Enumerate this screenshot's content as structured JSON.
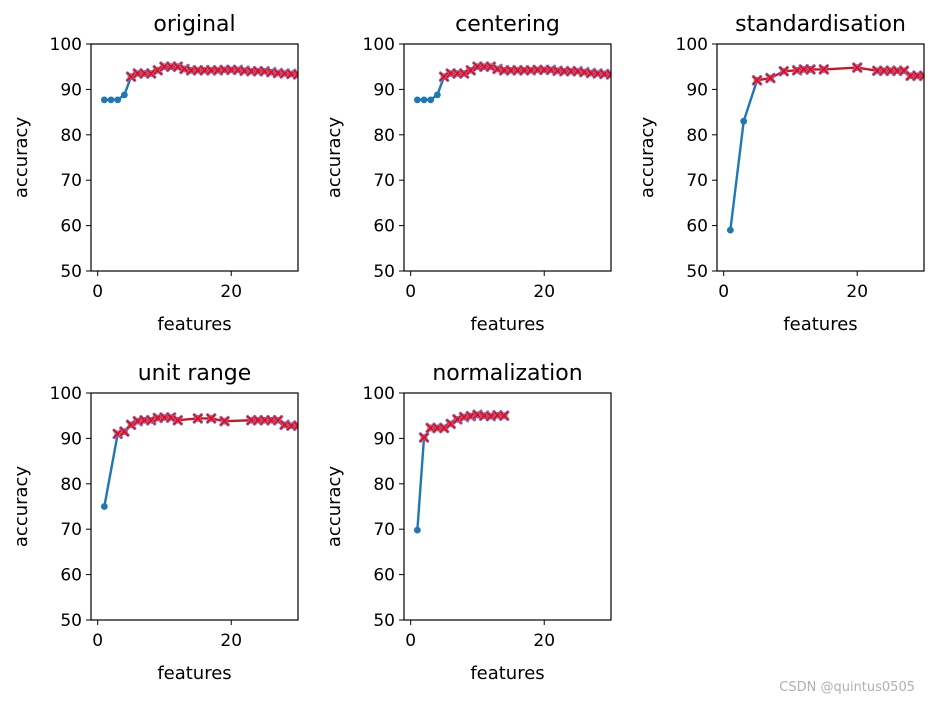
{
  "watermark": "CSDN @quintus0505",
  "colors": {
    "line": "#1f77b4",
    "selected_line": "#ff0000",
    "selected_marker": "#ff0000",
    "marker_edge": "#7f7fd0",
    "axis": "#000000",
    "text": "#000000",
    "watermark": "#b0b0b0"
  },
  "chart_data": [
    {
      "type": "line",
      "title": "original",
      "xlabel": "features",
      "ylabel": "accuracy",
      "xlim": [
        -1,
        30
      ],
      "ylim": [
        50,
        100
      ],
      "xticks": [
        0,
        20
      ],
      "yticks": [
        50,
        60,
        70,
        80,
        90,
        100
      ],
      "grid": false,
      "series": [
        {
          "role": "all",
          "x": [
            1,
            2,
            3,
            4,
            5,
            6,
            7,
            8,
            9,
            10,
            11,
            12,
            13,
            14,
            15,
            16,
            17,
            18,
            19,
            20,
            21,
            22,
            23,
            24,
            25,
            26,
            27,
            28,
            29,
            30
          ],
          "y": [
            87.7,
            87.7,
            87.7,
            88.8,
            92.8,
            93.5,
            93.5,
            93.5,
            94.2,
            95.0,
            95.0,
            95.0,
            94.5,
            94.2,
            94.2,
            94.2,
            94.2,
            94.2,
            94.3,
            94.3,
            94.3,
            94.1,
            94.0,
            94.0,
            94.0,
            93.8,
            93.6,
            93.5,
            93.4,
            93.3
          ]
        },
        {
          "role": "selected",
          "x": [
            5,
            6,
            7,
            8,
            9,
            10,
            11,
            12,
            13,
            14,
            15,
            16,
            17,
            18,
            19,
            20,
            21,
            22,
            23,
            24,
            25,
            26,
            27,
            28,
            29,
            30
          ],
          "y": [
            92.8,
            93.5,
            93.5,
            93.5,
            94.2,
            95.0,
            95.0,
            95.0,
            94.5,
            94.2,
            94.2,
            94.2,
            94.2,
            94.2,
            94.3,
            94.3,
            94.3,
            94.1,
            94.0,
            94.0,
            94.0,
            93.8,
            93.6,
            93.5,
            93.4,
            93.3
          ]
        }
      ]
    },
    {
      "type": "line",
      "title": "centering",
      "xlabel": "features",
      "ylabel": "accuracy",
      "xlim": [
        -1,
        30
      ],
      "ylim": [
        50,
        100
      ],
      "xticks": [
        0,
        20
      ],
      "yticks": [
        50,
        60,
        70,
        80,
        90,
        100
      ],
      "grid": false,
      "series": [
        {
          "role": "all",
          "x": [
            1,
            2,
            3,
            4,
            5,
            6,
            7,
            8,
            9,
            10,
            11,
            12,
            13,
            14,
            15,
            16,
            17,
            18,
            19,
            20,
            21,
            22,
            23,
            24,
            25,
            26,
            27,
            28,
            29,
            30
          ],
          "y": [
            87.7,
            87.7,
            87.7,
            88.8,
            92.8,
            93.5,
            93.5,
            93.5,
            94.2,
            95.0,
            95.0,
            95.0,
            94.5,
            94.2,
            94.2,
            94.2,
            94.2,
            94.2,
            94.3,
            94.3,
            94.3,
            94.1,
            94.0,
            94.0,
            94.0,
            93.8,
            93.6,
            93.5,
            93.4,
            93.3
          ]
        },
        {
          "role": "selected",
          "x": [
            5,
            6,
            7,
            8,
            9,
            10,
            11,
            12,
            13,
            14,
            15,
            16,
            17,
            18,
            19,
            20,
            21,
            22,
            23,
            24,
            25,
            26,
            27,
            28,
            29,
            30
          ],
          "y": [
            92.8,
            93.5,
            93.5,
            93.5,
            94.2,
            95.0,
            95.0,
            95.0,
            94.5,
            94.2,
            94.2,
            94.2,
            94.2,
            94.2,
            94.3,
            94.3,
            94.3,
            94.1,
            94.0,
            94.0,
            94.0,
            93.8,
            93.6,
            93.5,
            93.4,
            93.3
          ]
        }
      ]
    },
    {
      "type": "line",
      "title": "standardisation",
      "xlabel": "features",
      "ylabel": "accuracy",
      "xlim": [
        -1,
        30
      ],
      "ylim": [
        50,
        100
      ],
      "xticks": [
        0,
        20
      ],
      "yticks": [
        50,
        60,
        70,
        80,
        90,
        100
      ],
      "grid": false,
      "series": [
        {
          "role": "all",
          "x": [
            1,
            3,
            5,
            7,
            9,
            11,
            12,
            13,
            15,
            20,
            23,
            24,
            25,
            26,
            27,
            28,
            29,
            30
          ],
          "y": [
            59.0,
            83.0,
            92.0,
            92.5,
            94.0,
            94.2,
            94.4,
            94.4,
            94.4,
            94.8,
            94.1,
            94.1,
            94.1,
            94.1,
            94.1,
            93.0,
            93.0,
            93.0
          ]
        },
        {
          "role": "selected",
          "x": [
            5,
            7,
            9,
            11,
            12,
            13,
            15,
            20,
            23,
            24,
            25,
            26,
            27,
            28,
            29,
            30
          ],
          "y": [
            92.0,
            92.5,
            94.0,
            94.2,
            94.4,
            94.4,
            94.4,
            94.8,
            94.1,
            94.1,
            94.1,
            94.1,
            94.1,
            93.0,
            93.0,
            93.0
          ]
        }
      ]
    },
    {
      "type": "line",
      "title": "unit range",
      "xlabel": "features",
      "ylabel": "accuracy",
      "xlim": [
        -1,
        30
      ],
      "ylim": [
        50,
        100
      ],
      "xticks": [
        0,
        20
      ],
      "yticks": [
        50,
        60,
        70,
        80,
        90,
        100
      ],
      "grid": false,
      "series": [
        {
          "role": "all",
          "x": [
            1,
            3,
            4,
            5,
            6,
            7,
            8,
            9,
            10,
            11,
            12,
            15,
            17,
            19,
            23,
            24,
            25,
            26,
            27,
            28,
            29,
            30
          ],
          "y": [
            75.0,
            91.0,
            91.5,
            93.0,
            93.8,
            94.0,
            94.0,
            94.5,
            94.6,
            94.6,
            94.0,
            94.4,
            94.4,
            93.8,
            94.0,
            94.0,
            94.0,
            94.0,
            94.0,
            93.0,
            92.8,
            92.8
          ]
        },
        {
          "role": "selected",
          "x": [
            3,
            4,
            5,
            6,
            7,
            8,
            9,
            10,
            11,
            12,
            15,
            17,
            19,
            23,
            24,
            25,
            26,
            27,
            28,
            29,
            30
          ],
          "y": [
            91.0,
            91.5,
            93.0,
            93.8,
            94.0,
            94.0,
            94.5,
            94.6,
            94.6,
            94.0,
            94.4,
            94.4,
            93.8,
            94.0,
            94.0,
            94.0,
            94.0,
            94.0,
            93.0,
            92.8,
            92.8
          ]
        }
      ]
    },
    {
      "type": "line",
      "title": "normalization",
      "xlabel": "features",
      "ylabel": "accuracy",
      "xlim": [
        -1,
        30
      ],
      "ylim": [
        50,
        100
      ],
      "xticks": [
        0,
        20
      ],
      "yticks": [
        50,
        60,
        70,
        80,
        90,
        100
      ],
      "grid": false,
      "series": [
        {
          "role": "all",
          "x": [
            1,
            2,
            3,
            4,
            5,
            6,
            7,
            8,
            9,
            10,
            11,
            12,
            13,
            14
          ],
          "y": [
            69.8,
            90.2,
            92.3,
            92.3,
            92.3,
            93.2,
            94.2,
            94.7,
            94.9,
            95.2,
            95.0,
            94.9,
            95.1,
            95.0
          ]
        },
        {
          "role": "selected",
          "x": [
            2,
            3,
            4,
            5,
            6,
            7,
            8,
            9,
            10,
            11,
            12,
            13,
            14
          ],
          "y": [
            90.2,
            92.3,
            92.3,
            92.3,
            93.2,
            94.2,
            94.7,
            94.9,
            95.2,
            95.0,
            94.9,
            95.1,
            95.0
          ]
        }
      ]
    }
  ]
}
